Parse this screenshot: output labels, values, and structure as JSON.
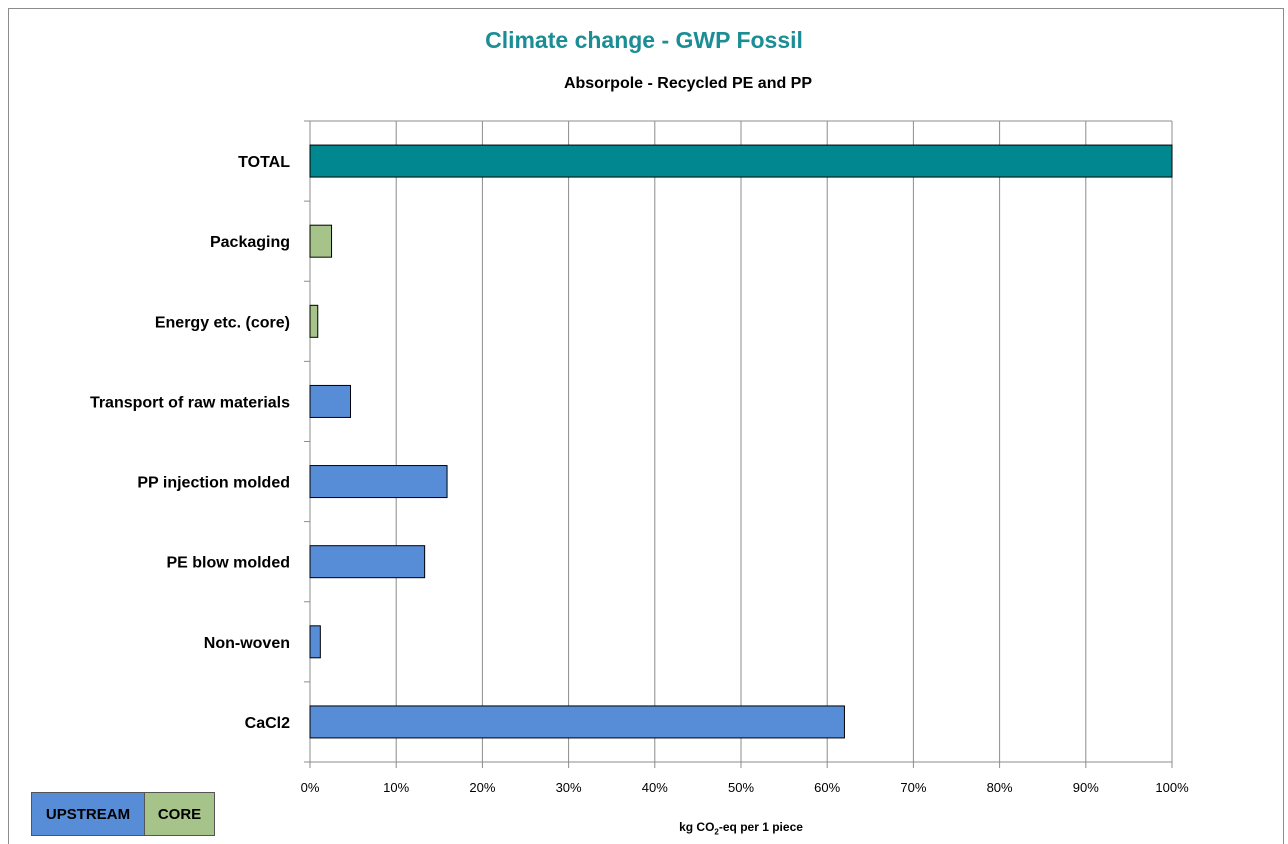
{
  "chart_data": {
    "type": "bar",
    "orientation": "horizontal",
    "title": "Climate change - GWP Fossil",
    "subtitle": "Absorpole - Recycled PE and PP",
    "xlabel_parts": [
      "kg CO",
      "2",
      "-eq per 1 piece"
    ],
    "xlim": [
      0,
      100
    ],
    "x_tick_labels": [
      "0%",
      "10%",
      "20%",
      "30%",
      "40%",
      "50%",
      "60%",
      "70%",
      "80%",
      "90%",
      "100%"
    ],
    "grid": "vertical",
    "categories": [
      "TOTAL",
      "Packaging",
      "Energy etc. (core)",
      "Transport of raw materials",
      "PP injection molded",
      "PE blow molded",
      "Non-woven",
      "CaCl2"
    ],
    "values": [
      100,
      2.5,
      0.9,
      4.7,
      15.9,
      13.3,
      1.2,
      62.0
    ],
    "groups": [
      "total",
      "core",
      "core",
      "upstream",
      "upstream",
      "upstream",
      "upstream",
      "upstream"
    ],
    "legend": {
      "placement": "bottom-left",
      "entries": [
        {
          "label": "UPSTREAM",
          "color": "#578dd6"
        },
        {
          "label": "CORE",
          "color": "#a6c48a"
        }
      ]
    },
    "colors": {
      "total": "#00878f",
      "core": "#a6c48a",
      "upstream": "#578dd6",
      "grid": "#8c8c8c"
    }
  }
}
